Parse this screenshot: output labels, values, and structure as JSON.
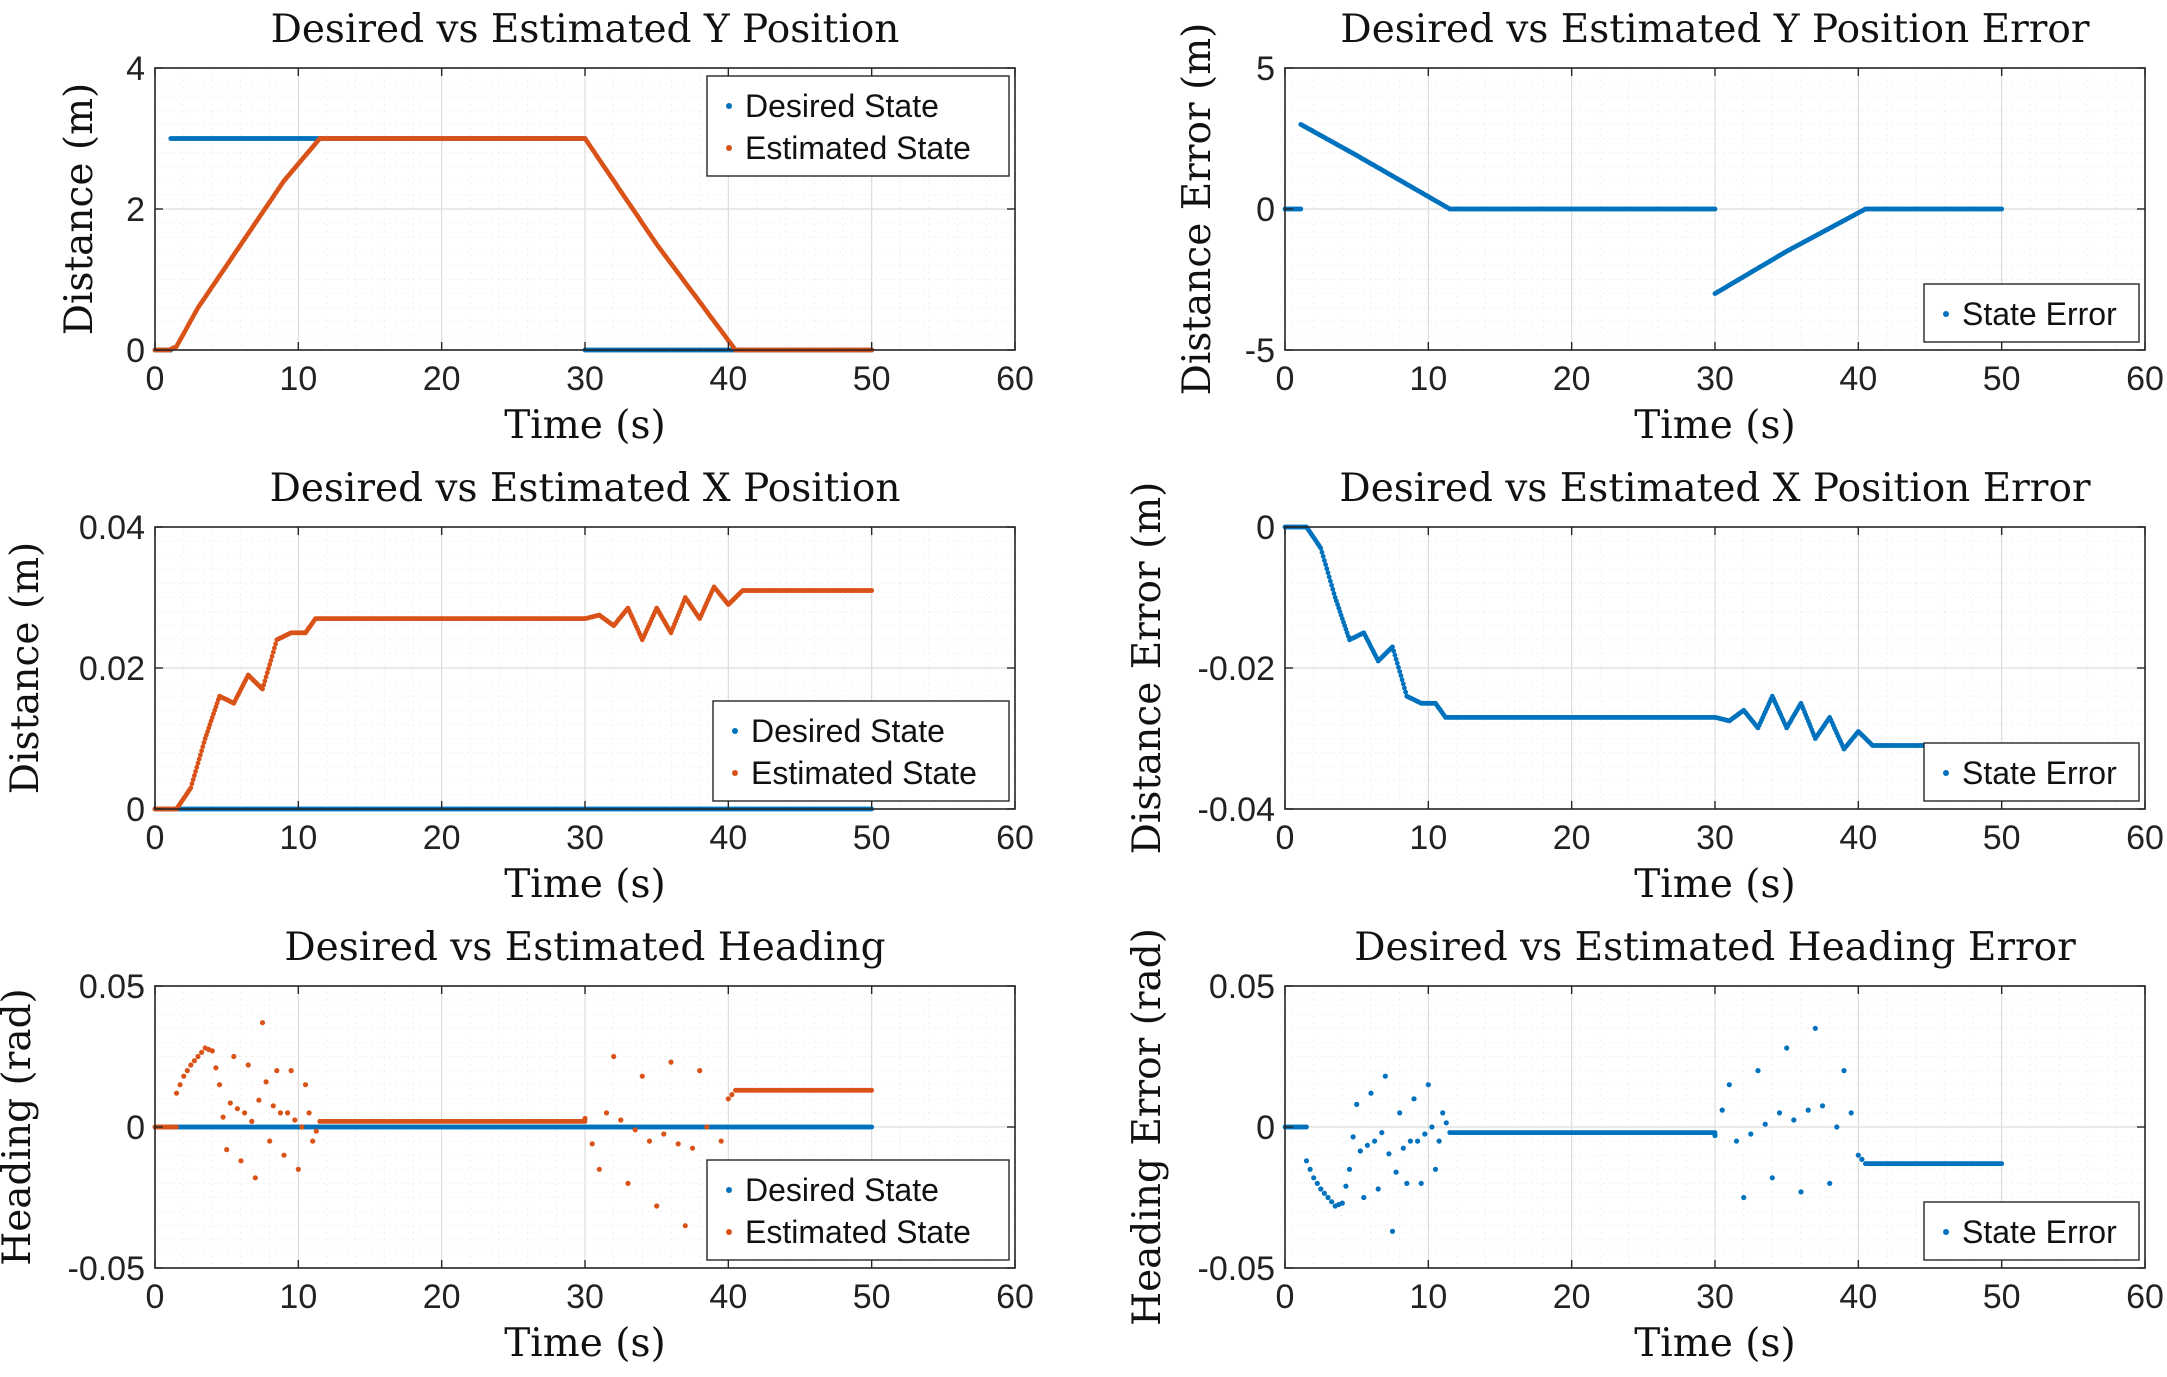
{
  "figure": {
    "layout": "3 rows x 2 columns"
  },
  "colors": {
    "desired": "#0072BD",
    "estimated": "#D95319",
    "error": "#0072BD"
  },
  "chart_data": [
    {
      "type": "scatter",
      "title": "Desired vs Estimated Y Position",
      "xlabel": "Time (s)",
      "ylabel": "Distance (m)",
      "xlim": [
        0,
        60
      ],
      "ylim": [
        0,
        4
      ],
      "xticks": [
        0,
        10,
        20,
        30,
        40,
        50,
        60
      ],
      "yticks": [
        0,
        2,
        4
      ],
      "xtick_labels": [
        "0",
        "10",
        "20",
        "30",
        "40",
        "50",
        "60"
      ],
      "ytick_labels": [
        "0",
        "2",
        "4"
      ],
      "grid": true,
      "legend_position": "top-right",
      "legend": [
        "Desired State",
        "Estimated State"
      ],
      "series": [
        {
          "name": "Desired State",
          "color": "#0072BD",
          "segments": [
            {
              "x": [
                0,
                0.5,
                1,
                1.1
              ],
              "y": [
                0,
                0,
                0,
                0
              ]
            },
            {
              "x": [
                1.1,
                5,
                10,
                20,
                30
              ],
              "y": [
                3,
                3,
                3,
                3,
                3
              ]
            },
            {
              "x": [
                30,
                35,
                40,
                45,
                50
              ],
              "y": [
                0,
                0,
                0,
                0,
                0
              ]
            }
          ]
        },
        {
          "name": "Estimated State",
          "color": "#D95319",
          "segments": [
            {
              "x": [
                0,
                1,
                1.5,
                3,
                6,
                9,
                11.5,
                20,
                30,
                35,
                40.5,
                45,
                50
              ],
              "y": [
                0,
                0,
                0.05,
                0.6,
                1.5,
                2.4,
                3,
                3,
                3,
                1.5,
                0,
                0,
                0
              ]
            }
          ]
        }
      ]
    },
    {
      "type": "scatter",
      "title": "Desired vs Estimated Y Position Error",
      "xlabel": "Time (s)",
      "ylabel": "Distance Error (m)",
      "xlim": [
        0,
        60
      ],
      "ylim": [
        -5,
        5
      ],
      "xticks": [
        0,
        10,
        20,
        30,
        40,
        50,
        60
      ],
      "yticks": [
        -5,
        0,
        5
      ],
      "xtick_labels": [
        "0",
        "10",
        "20",
        "30",
        "40",
        "50",
        "60"
      ],
      "ytick_labels": [
        "-5",
        "0",
        "5"
      ],
      "grid": true,
      "legend_position": "bottom-right",
      "legend": [
        "State Error"
      ],
      "series": [
        {
          "name": "State Error",
          "color": "#0072BD",
          "segments": [
            {
              "x": [
                0,
                0.5,
                1.1
              ],
              "y": [
                0,
                0,
                0
              ]
            },
            {
              "x": [
                1.1,
                5,
                11.5,
                20,
                30
              ],
              "y": [
                3,
                1.9,
                0,
                0,
                0
              ]
            },
            {
              "x": [
                30,
                35,
                40.5,
                45,
                50
              ],
              "y": [
                -3,
                -1.5,
                0,
                0,
                0
              ]
            }
          ]
        }
      ]
    },
    {
      "type": "scatter",
      "title": "Desired vs Estimated X Position",
      "xlabel": "Time (s)",
      "ylabel": "Distance (m)",
      "xlim": [
        0,
        60
      ],
      "ylim": [
        0,
        0.04
      ],
      "xticks": [
        0,
        10,
        20,
        30,
        40,
        50,
        60
      ],
      "yticks": [
        0,
        0.02,
        0.04
      ],
      "xtick_labels": [
        "0",
        "10",
        "20",
        "30",
        "40",
        "50",
        "60"
      ],
      "ytick_labels": [
        "0",
        "0.02",
        "0.04"
      ],
      "grid": true,
      "legend_position": "bottom-right",
      "legend": [
        "Desired State",
        "Estimated State"
      ],
      "series": [
        {
          "name": "Desired State",
          "color": "#0072BD",
          "segments": [
            {
              "x": [
                0,
                10,
                20,
                30,
                40,
                50
              ],
              "y": [
                0,
                0,
                0,
                0,
                0,
                0
              ]
            }
          ]
        },
        {
          "name": "Estimated State",
          "color": "#D95319",
          "segments": [
            {
              "x": [
                0,
                1.5,
                2.5,
                3.5,
                4.5,
                5.5,
                6.5,
                7.5,
                8.5,
                9.5,
                10.5,
                11.2,
                20,
                30,
                31,
                32,
                33,
                34,
                35,
                36,
                37,
                38,
                39,
                40,
                41,
                45,
                50
              ],
              "y": [
                0,
                0,
                0.003,
                0.01,
                0.016,
                0.015,
                0.019,
                0.017,
                0.024,
                0.025,
                0.025,
                0.027,
                0.027,
                0.027,
                0.0275,
                0.026,
                0.0285,
                0.024,
                0.0285,
                0.025,
                0.03,
                0.027,
                0.0315,
                0.029,
                0.031,
                0.031,
                0.031
              ]
            }
          ]
        }
      ]
    },
    {
      "type": "scatter",
      "title": "Desired vs Estimated X Position Error",
      "xlabel": "Time (s)",
      "ylabel": "Distance Error (m)",
      "xlim": [
        0,
        60
      ],
      "ylim": [
        -0.04,
        0
      ],
      "xticks": [
        0,
        10,
        20,
        30,
        40,
        50,
        60
      ],
      "yticks": [
        -0.04,
        -0.02,
        0
      ],
      "xtick_labels": [
        "0",
        "10",
        "20",
        "30",
        "40",
        "50",
        "60"
      ],
      "ytick_labels": [
        "-0.04",
        "-0.02",
        "0"
      ],
      "grid": true,
      "legend_position": "bottom-right",
      "legend": [
        "State Error"
      ],
      "series": [
        {
          "name": "State Error",
          "color": "#0072BD",
          "segments": [
            {
              "x": [
                0,
                1.5,
                2.5,
                3.5,
                4.5,
                5.5,
                6.5,
                7.5,
                8.5,
                9.5,
                10.5,
                11.2,
                20,
                30,
                31,
                32,
                33,
                34,
                35,
                36,
                37,
                38,
                39,
                40,
                41,
                45,
                50
              ],
              "y": [
                0,
                0,
                -0.003,
                -0.01,
                -0.016,
                -0.015,
                -0.019,
                -0.017,
                -0.024,
                -0.025,
                -0.025,
                -0.027,
                -0.027,
                -0.027,
                -0.0275,
                -0.026,
                -0.0285,
                -0.024,
                -0.0285,
                -0.025,
                -0.03,
                -0.027,
                -0.0315,
                -0.029,
                -0.031,
                -0.031,
                -0.031
              ]
            }
          ]
        }
      ]
    },
    {
      "type": "scatter",
      "title": "Desired vs Estimated Heading",
      "xlabel": "Time (s)",
      "ylabel": "Heading (rad)",
      "xlim": [
        0,
        60
      ],
      "ylim": [
        -0.05,
        0.05
      ],
      "xticks": [
        0,
        10,
        20,
        30,
        40,
        50,
        60
      ],
      "yticks": [
        -0.05,
        0,
        0.05
      ],
      "xtick_labels": [
        "0",
        "10",
        "20",
        "30",
        "40",
        "50",
        "60"
      ],
      "ytick_labels": [
        "-0.05",
        "0",
        "0.05"
      ],
      "grid": true,
      "legend_position": "bottom-right",
      "legend": [
        "Desired State",
        "Estimated State"
      ],
      "series": [
        {
          "name": "Desired State",
          "color": "#0072BD",
          "segments": [
            {
              "x": [
                0,
                10,
                20,
                30,
                40,
                50
              ],
              "y": [
                0,
                0,
                0,
                0,
                0,
                0
              ]
            }
          ]
        },
        {
          "name": "Estimated State",
          "color": "#D95319",
          "segments": [
            {
              "x": [
                0,
                1.5
              ],
              "y": [
                0,
                0
              ]
            },
            {
              "x": [
                1.5,
                2,
                2.5,
                3,
                3.5,
                4,
                4.5,
                5,
                5.5,
                6,
                6.5,
                7,
                7.5,
                8,
                8.5,
                9,
                9.5,
                10,
                10.5,
                11,
                11.5
              ],
              "y": [
                0.012,
                0.018,
                0.022,
                0.025,
                0.028,
                0.027,
                0.015,
                -0.008,
                0.025,
                -0.012,
                0.022,
                -0.018,
                0.037,
                -0.005,
                0.02,
                -0.01,
                0.02,
                -0.015,
                0.015,
                -0.005,
                0.002
              ]
            },
            {
              "x": [
                11.5,
                20,
                30
              ],
              "y": [
                0.002,
                0.002,
                0.002
              ]
            },
            {
              "x": [
                30,
                31,
                32,
                33,
                34,
                35,
                36,
                37,
                38,
                39,
                40,
                40.5
              ],
              "y": [
                0.003,
                -0.015,
                0.025,
                -0.02,
                0.018,
                -0.028,
                0.023,
                -0.035,
                0.02,
                -0.02,
                0.01,
                0.013
              ]
            },
            {
              "x": [
                40.5,
                45,
                50
              ],
              "y": [
                0.013,
                0.013,
                0.013
              ]
            }
          ]
        }
      ]
    },
    {
      "type": "scatter",
      "title": "Desired vs Estimated Heading Error",
      "xlabel": "Time (s)",
      "ylabel": "Heading Error (rad)",
      "xlim": [
        0,
        60
      ],
      "ylim": [
        -0.05,
        0.05
      ],
      "xticks": [
        0,
        10,
        20,
        30,
        40,
        50,
        60
      ],
      "yticks": [
        -0.05,
        0,
        0.05
      ],
      "xtick_labels": [
        "0",
        "10",
        "20",
        "30",
        "40",
        "50",
        "60"
      ],
      "ytick_labels": [
        "-0.05",
        "0",
        "0.05"
      ],
      "grid": true,
      "legend_position": "bottom-right",
      "legend": [
        "State Error"
      ],
      "series": [
        {
          "name": "State Error",
          "color": "#0072BD",
          "segments": [
            {
              "x": [
                0,
                1.5
              ],
              "y": [
                0,
                0
              ]
            },
            {
              "x": [
                1.5,
                2,
                2.5,
                3,
                3.5,
                4,
                4.5,
                5,
                5.5,
                6,
                6.5,
                7,
                7.5,
                8,
                8.5,
                9,
                9.5,
                10,
                10.5,
                11,
                11.5
              ],
              "y": [
                -0.012,
                -0.018,
                -0.022,
                -0.025,
                -0.028,
                -0.027,
                -0.015,
                0.008,
                -0.025,
                0.012,
                -0.022,
                0.018,
                -0.037,
                0.005,
                -0.02,
                0.01,
                -0.02,
                0.015,
                -0.015,
                0.005,
                -0.002
              ]
            },
            {
              "x": [
                11.5,
                20,
                30
              ],
              "y": [
                -0.002,
                -0.002,
                -0.002
              ]
            },
            {
              "x": [
                30,
                31,
                32,
                33,
                34,
                35,
                36,
                37,
                38,
                39,
                40,
                40.5
              ],
              "y": [
                -0.003,
                0.015,
                -0.025,
                0.02,
                -0.018,
                0.028,
                -0.023,
                0.035,
                -0.02,
                0.02,
                -0.01,
                -0.013
              ]
            },
            {
              "x": [
                40.5,
                45,
                50
              ],
              "y": [
                -0.013,
                -0.013,
                -0.013
              ]
            }
          ]
        }
      ]
    }
  ]
}
